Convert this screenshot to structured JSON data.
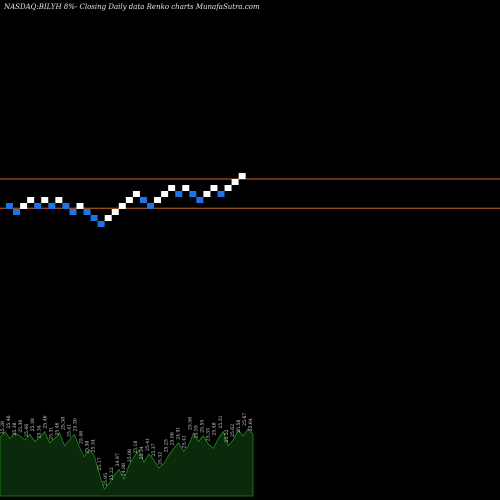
{
  "caption": "NASDAQ:BILYH 8%-   Closing Daily data  Renko  charts MunafaSutra.com",
  "colors": {
    "background": "#000000",
    "up_brick": "#ffffff",
    "down_brick": "#1e73e6",
    "reference_line": "#c8641e",
    "volume_fill": "#0b2a0b",
    "volume_line": "#1e8c1e",
    "label": "#d9d9d9"
  },
  "chart_data": {
    "type": "renko",
    "title": "NASDAQ:BILYH 8%-   Closing Daily data  Renko  charts MunafaSutra.com",
    "brick_size": 0.08,
    "bricks": [
      {
        "dir": "down",
        "level": 25.38
      },
      {
        "dir": "down",
        "level": 25.3
      },
      {
        "dir": "up",
        "level": 25.38
      },
      {
        "dir": "up",
        "level": 25.46
      },
      {
        "dir": "down",
        "level": 25.38
      },
      {
        "dir": "up",
        "level": 25.46
      },
      {
        "dir": "down",
        "level": 25.38
      },
      {
        "dir": "up",
        "level": 25.46
      },
      {
        "dir": "down",
        "level": 25.38
      },
      {
        "dir": "down",
        "level": 25.3
      },
      {
        "dir": "up",
        "level": 25.38
      },
      {
        "dir": "down",
        "level": 25.3
      },
      {
        "dir": "down",
        "level": 25.22
      },
      {
        "dir": "down",
        "level": 25.14
      },
      {
        "dir": "up",
        "level": 25.22
      },
      {
        "dir": "up",
        "level": 25.3
      },
      {
        "dir": "up",
        "level": 25.38
      },
      {
        "dir": "up",
        "level": 25.46
      },
      {
        "dir": "up",
        "level": 25.54
      },
      {
        "dir": "down",
        "level": 25.46
      },
      {
        "dir": "down",
        "level": 25.38
      },
      {
        "dir": "up",
        "level": 25.46
      },
      {
        "dir": "up",
        "level": 25.54
      },
      {
        "dir": "up",
        "level": 25.62
      },
      {
        "dir": "down",
        "level": 25.54
      },
      {
        "dir": "up",
        "level": 25.62
      },
      {
        "dir": "down",
        "level": 25.54
      },
      {
        "dir": "down",
        "level": 25.46
      },
      {
        "dir": "up",
        "level": 25.54
      },
      {
        "dir": "up",
        "level": 25.62
      },
      {
        "dir": "down",
        "level": 25.54
      },
      {
        "dir": "up",
        "level": 25.62
      },
      {
        "dir": "up",
        "level": 25.7
      },
      {
        "dir": "up",
        "level": 25.78
      }
    ],
    "reference_lines": [
      25.74,
      25.35
    ],
    "volume_bars": [
      4.2,
      4.6,
      4.1,
      4.5,
      4.3,
      4.0,
      4.4,
      3.9,
      4.2,
      4.6,
      3.8,
      4.1,
      4.5,
      3.6,
      4.0,
      4.4,
      3.5,
      2.8,
      3.3,
      2.9,
      1.6,
      0.5,
      0.9,
      1.5,
      1.9,
      1.2,
      2.2,
      2.8,
      3.3,
      2.4,
      3.0,
      2.6,
      2.0,
      2.3,
      2.9,
      3.4,
      3.8,
      3.2,
      3.6,
      4.5,
      3.9,
      4.3,
      3.7,
      3.4,
      4.1,
      4.6,
      3.6,
      4.0,
      4.7,
      4.3,
      4.8,
      4.4
    ],
    "value_labels": [
      "25.28",
      "25.46",
      "25.38",
      "25.36",
      "25.46",
      "25.38",
      "25.34",
      "25.46",
      "25.31",
      "25.46",
      "25.38",
      "25.41",
      "25.30",
      "25.46",
      "25.38",
      "25.34",
      "25.17",
      "25.05",
      "25.22",
      "24.97",
      "24.88",
      "25.08",
      "25.18",
      "25.34",
      "25.41",
      "25.37",
      "25.32",
      "25.25",
      "25.08",
      "24.91",
      "25.41",
      "25.56",
      "25.59",
      "25.55",
      "25.33",
      "25.48",
      "25.31",
      "25.52",
      "25.62",
      "25.58",
      "25.67",
      "25.64"
    ]
  }
}
